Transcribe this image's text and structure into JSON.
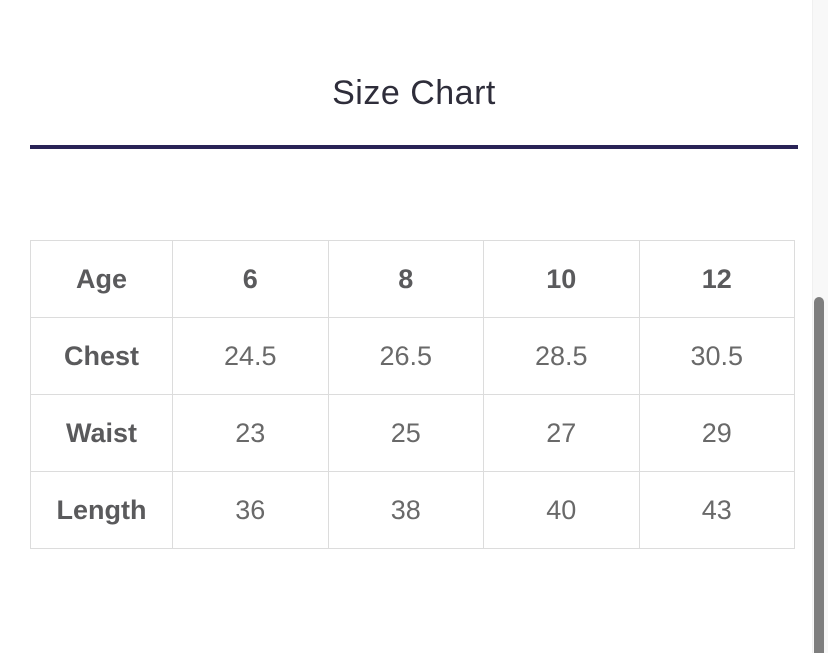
{
  "page": {
    "title": "Size Chart",
    "background_color": "#ffffff",
    "divider_color": "#292356",
    "title_color": "#2e2d3a"
  },
  "size_table": {
    "header_row": [
      "Age",
      "6",
      "8",
      "10",
      "12"
    ],
    "rows": [
      {
        "label": "Chest",
        "values": [
          "24.5",
          "26.5",
          "28.5",
          "30.5"
        ]
      },
      {
        "label": "Waist",
        "values": [
          "23",
          "25",
          "27",
          "29"
        ]
      },
      {
        "label": "Length",
        "values": [
          "36",
          "38",
          "40",
          "43"
        ]
      }
    ],
    "border_color": "#dcdcdc",
    "header_text_color": "#5a5a5c",
    "value_text_color": "#696969"
  },
  "scrollbar": {
    "track_color": "#f8f8f8",
    "thumb_color": "#7e7e7e"
  }
}
